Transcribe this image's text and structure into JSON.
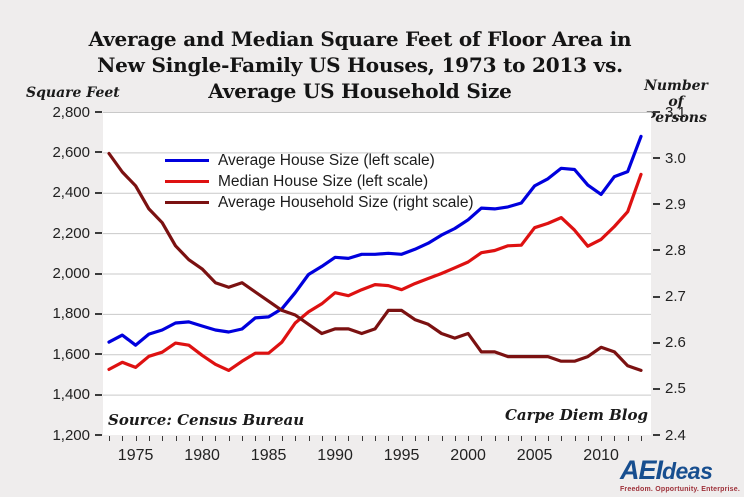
{
  "header": {
    "title_line1": "Average and Median Square Feet of Floor Area in",
    "title_line2": "New Single-Family US Houses, 1973 to 2013 vs.",
    "title_line3": "Average US Household Size",
    "left_axis_title": "Square Feet",
    "right_axis_title_line1": "Number of",
    "right_axis_title_line2": "Persons"
  },
  "footer": {
    "source": "Source: Census Bureau",
    "blog": "Carpe Diem Blog",
    "logo_brand_bold": "AEI",
    "logo_brand_rest": "deas",
    "logo_tagline": "Freedom. Opportunity. Enterprise."
  },
  "colors": {
    "background": "#efeded",
    "plot_background": "#ffffff",
    "gridline": "#c9c9c9",
    "average_house_line": "#0000dd",
    "median_house_line": "#de1111",
    "household_size_line": "#7b1111",
    "logo_blue": "#174e8f"
  },
  "chart_data": {
    "type": "line",
    "title": "Average and Median Square Feet of Floor Area in New Single-Family US Houses, 1973 to 2013 vs. Average US Household Size",
    "grid": true,
    "legend_position": "upper-left-inside",
    "x": [
      1973,
      1974,
      1975,
      1976,
      1977,
      1978,
      1979,
      1980,
      1981,
      1982,
      1983,
      1984,
      1985,
      1986,
      1987,
      1988,
      1989,
      1990,
      1991,
      1992,
      1993,
      1994,
      1995,
      1996,
      1997,
      1998,
      1999,
      2000,
      2001,
      2002,
      2003,
      2004,
      2005,
      2006,
      2007,
      2008,
      2009,
      2010,
      2011,
      2012,
      2013
    ],
    "x_tick_years": [
      1975,
      1980,
      1985,
      1990,
      1995,
      2000,
      2005,
      2010
    ],
    "x_tick_labels": [
      "1975",
      "1980",
      "1985",
      "1990",
      "1995",
      "2000",
      "2005",
      "2010"
    ],
    "left_axis": {
      "title": "Square Feet",
      "range": [
        1200,
        2800
      ],
      "tick_values": [
        2800,
        2600,
        2400,
        2200,
        2000,
        1800,
        1600,
        1400,
        1200
      ],
      "tick_labels": [
        "2,800",
        "2,600",
        "2,400",
        "2,200",
        "2,000",
        "1,800",
        "1,600",
        "1,400",
        "1,200"
      ]
    },
    "right_axis": {
      "title": "Number of Persons",
      "range": [
        2.4,
        3.1
      ],
      "tick_values": [
        3.1,
        3.0,
        2.9,
        2.8,
        2.7,
        2.6,
        2.5,
        2.4
      ],
      "tick_labels": [
        "3.1",
        "3.0",
        "2.9",
        "2.8",
        "2.7",
        "2.6",
        "2.5",
        "2.4"
      ]
    },
    "series": [
      {
        "name": "Average House Size (left scale)",
        "axis": "left",
        "color": "#0000dd",
        "values": [
          1660,
          1695,
          1645,
          1700,
          1720,
          1755,
          1760,
          1740,
          1720,
          1710,
          1725,
          1780,
          1785,
          1825,
          1905,
          1995,
          2035,
          2080,
          2075,
          2095,
          2095,
          2100,
          2095,
          2120,
          2150,
          2190,
          2223,
          2266,
          2324,
          2320,
          2330,
          2349,
          2434,
          2469,
          2521,
          2515,
          2438,
          2392,
          2480,
          2505,
          2679
        ]
      },
      {
        "name": "Median House Size (left scale)",
        "axis": "left",
        "color": "#de1111",
        "values": [
          1525,
          1560,
          1535,
          1590,
          1610,
          1655,
          1645,
          1595,
          1550,
          1520,
          1565,
          1605,
          1605,
          1660,
          1755,
          1810,
          1850,
          1905,
          1890,
          1920,
          1945,
          1940,
          1920,
          1950,
          1975,
          2000,
          2028,
          2057,
          2103,
          2114,
          2137,
          2140,
          2227,
          2248,
          2277,
          2215,
          2135,
          2169,
          2233,
          2306,
          2491
        ]
      },
      {
        "name": "Average Household Size (right scale)",
        "axis": "right",
        "color": "#7b1111",
        "values": [
          3.01,
          2.97,
          2.94,
          2.89,
          2.86,
          2.81,
          2.78,
          2.76,
          2.73,
          2.72,
          2.73,
          2.71,
          2.69,
          2.67,
          2.66,
          2.64,
          2.62,
          2.63,
          2.63,
          2.62,
          2.63,
          2.67,
          2.67,
          2.65,
          2.64,
          2.62,
          2.61,
          2.62,
          2.58,
          2.58,
          2.57,
          2.57,
          2.57,
          2.57,
          2.56,
          2.56,
          2.57,
          2.59,
          2.58,
          2.55,
          2.54
        ]
      }
    ]
  }
}
